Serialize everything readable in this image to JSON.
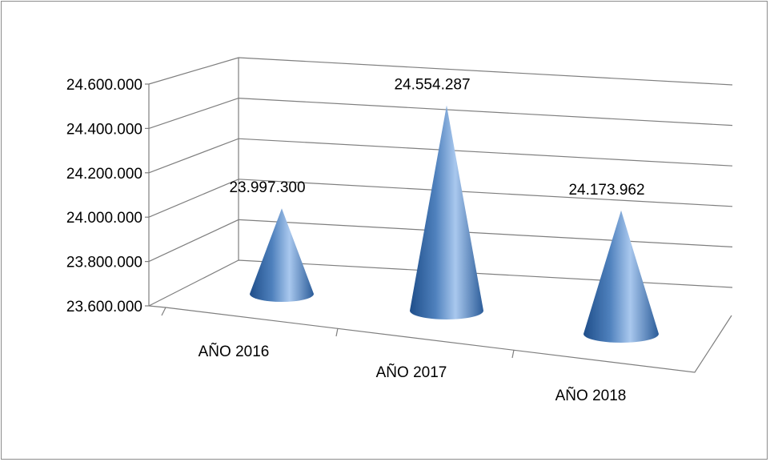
{
  "chart_data": {
    "type": "bar",
    "style": "3d-cone",
    "categories": [
      "AÑO 2016",
      "AÑO 2017",
      "AÑO 2018"
    ],
    "values": [
      23997300,
      24554287,
      24173962
    ],
    "value_labels": [
      "23.997.300",
      "24.554.287",
      "24.173.962"
    ],
    "ylim": [
      23600000,
      24600000
    ],
    "yticks": [
      23600000,
      23800000,
      24000000,
      24200000,
      24400000,
      24600000
    ],
    "ytick_labels": [
      "23.600.000",
      "23.800.000",
      "24.000.000",
      "24.200.000",
      "24.400.000",
      "24.600.000"
    ],
    "grid": true,
    "legend": "none",
    "title": "",
    "xlabel": "",
    "ylabel": "",
    "colors": {
      "cone_light": "#a9c8ee",
      "cone_mid": "#4f81bd",
      "cone_dark": "#1f4e8a",
      "grid": "#7f7f7f"
    }
  }
}
